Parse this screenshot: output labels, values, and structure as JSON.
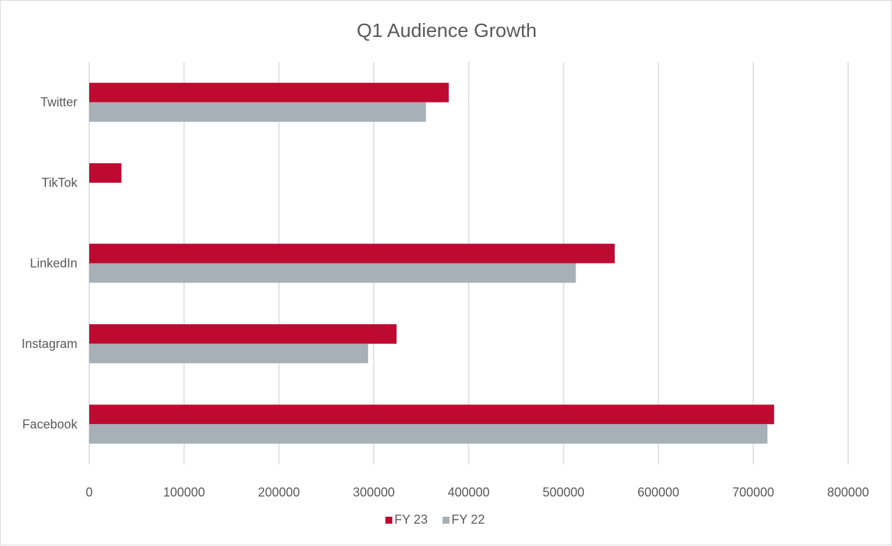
{
  "chart_data": {
    "type": "bar",
    "orientation": "horizontal",
    "title": "Q1 Audience Growth",
    "xlabel": "",
    "ylabel": "",
    "categories": [
      "Facebook",
      "Instagram",
      "LinkedIn",
      "TikTok",
      "Twitter"
    ],
    "series": [
      {
        "name": "FY 23",
        "color": "#be0a30",
        "values": [
          722000,
          324000,
          554000,
          34000,
          379000
        ]
      },
      {
        "name": "FY 22",
        "color": "#a8b0b7",
        "values": [
          715000,
          294000,
          513000,
          0,
          355000
        ]
      }
    ],
    "xlim": [
      0,
      800000
    ],
    "x_ticks": [
      "0",
      "100000",
      "200000",
      "300000",
      "400000",
      "500000",
      "600000",
      "700000",
      "800000"
    ],
    "x_tick_values": [
      0,
      100000,
      200000,
      300000,
      400000,
      500000,
      600000,
      700000,
      800000
    ],
    "grid": true,
    "grid_color": "#d9d9d9",
    "legend_position": "bottom"
  }
}
